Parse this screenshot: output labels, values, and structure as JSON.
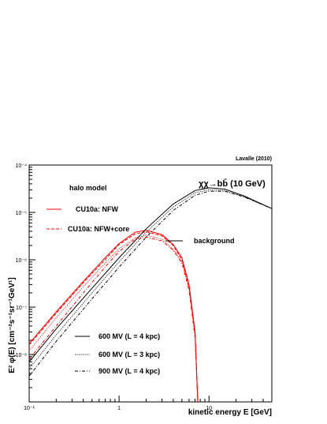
{
  "chart_data": {
    "type": "line",
    "credit": "Lavalle (2010)",
    "annotation": "χχ→bb̄ (10 GeV)",
    "legend_header": "halo model",
    "xlabel": "kinetic energy E [GeV]",
    "ylabel": "E² φ(E) [cm⁻²s⁻¹sr⁻¹GeV¹]",
    "x_scale": "log",
    "y_scale": "log",
    "xlim": [
      0.1,
      50
    ],
    "ylim": [
      1e-09,
      0.0001
    ],
    "x_ticks": [
      {
        "value": 0.1,
        "label": "10⁻¹"
      },
      {
        "value": 1,
        "label": "1"
      },
      {
        "value": 10,
        "label": "10"
      }
    ],
    "y_ticks": [
      {
        "value": 1e-08,
        "label": "10⁻⁸"
      },
      {
        "value": 1e-07,
        "label": "10⁻⁷"
      },
      {
        "value": 1e-06,
        "label": "10⁻⁶"
      },
      {
        "value": 1e-05,
        "label": "10⁻⁵"
      },
      {
        "value": 0.0001,
        "label": "10⁻⁴"
      }
    ],
    "legend": [
      {
        "label": "CU10a: NFW",
        "color": "#ff0000",
        "style": "solid"
      },
      {
        "label": "CU10a̅: NFW+core",
        "color": "#ff0000",
        "style": "dashed"
      },
      {
        "label": "background",
        "color": "#000000",
        "style": "solid"
      },
      {
        "label": "600 MV (L = 4 kpc)",
        "color": "#000000",
        "style": "solid"
      },
      {
        "label": "600 MV (L = 3 kpc)",
        "color": "#000000",
        "style": "dotted"
      },
      {
        "label": "900 MV (L = 4 kpc)",
        "color": "#000000",
        "style": "dashdot"
      }
    ],
    "series": [
      {
        "color": "#ff0000",
        "style": "solid",
        "x": [
          0.1,
          0.2,
          0.4,
          0.7,
          1.0,
          1.5,
          2.0,
          3.0,
          4.0,
          5.0,
          6.0,
          7.0,
          7.5
        ],
        "y": [
          1.7e-08,
          8e-08,
          3.5e-07,
          1.1e-06,
          2.2e-06,
          3.8e-06,
          4.2e-06,
          3.4e-06,
          2.1e-06,
          1.1e-06,
          3e-07,
          3e-08,
          1e-09
        ]
      },
      {
        "color": "#ff0000",
        "style": "dotted",
        "x": [
          0.1,
          0.2,
          0.4,
          0.7,
          1.0,
          1.5,
          2.0,
          3.0,
          4.0,
          5.0,
          6.0,
          7.0,
          7.5
        ],
        "y": [
          1.2e-08,
          6e-08,
          2.7e-07,
          8.5e-07,
          1.7e-06,
          2.9e-06,
          3.3e-06,
          2.7e-06,
          1.7e-06,
          9e-07,
          2.5e-07,
          2.5e-08,
          1e-09
        ]
      },
      {
        "color": "#ff0000",
        "style": "dashdot",
        "x": [
          0.1,
          0.2,
          0.4,
          0.7,
          1.0,
          1.5,
          2.0,
          3.0,
          4.0,
          5.0,
          6.0,
          7.0,
          7.5
        ],
        "y": [
          8e-09,
          4e-08,
          2e-07,
          7e-07,
          1.5e-06,
          2.7e-06,
          3e-06,
          2.5e-06,
          1.6e-06,
          8.5e-07,
          2.3e-07,
          2.2e-08,
          1e-09
        ]
      },
      {
        "color": "#ff0000",
        "style": "dashed",
        "x": [
          0.1,
          0.2,
          0.4,
          0.7,
          1.0,
          1.5,
          2.0,
          3.0,
          4.0,
          5.0,
          6.0,
          7.0,
          7.5
        ],
        "y": [
          1.6e-08,
          7.5e-08,
          3.3e-07,
          1e-06,
          2.1e-06,
          3.5e-06,
          3.9e-06,
          3.2e-06,
          2e-06,
          1e-06,
          2.8e-07,
          2.8e-08,
          1e-09
        ]
      },
      {
        "color": "#000000",
        "style": "solid",
        "x": [
          0.1,
          0.2,
          0.5,
          1.0,
          2.0,
          4.0,
          7.0,
          10,
          15,
          25,
          50
        ],
        "y": [
          7e-09,
          3.5e-08,
          2.5e-07,
          1.1e-06,
          4.5e-06,
          1.5e-05,
          2.9e-05,
          3.3e-05,
          3.1e-05,
          2.2e-05,
          1.2e-05
        ]
      },
      {
        "color": "#000000",
        "style": "dotted",
        "x": [
          0.1,
          0.2,
          0.5,
          1.0,
          2.0,
          4.0,
          7.0,
          10,
          15,
          25,
          50
        ],
        "y": [
          5e-09,
          2.6e-08,
          2e-07,
          9e-07,
          3.8e-06,
          1.3e-05,
          2.6e-05,
          3e-05,
          2.9e-05,
          2.1e-05,
          1.2e-05
        ]
      },
      {
        "color": "#000000",
        "style": "dashdot",
        "x": [
          0.1,
          0.2,
          0.5,
          1.0,
          2.0,
          4.0,
          7.0,
          10,
          15,
          25,
          50
        ],
        "y": [
          3.5e-09,
          1.9e-08,
          1.5e-07,
          7e-07,
          3e-06,
          1.1e-05,
          2.3e-05,
          2.8e-05,
          2.8e-05,
          2.1e-05,
          1.2e-05
        ]
      }
    ]
  }
}
